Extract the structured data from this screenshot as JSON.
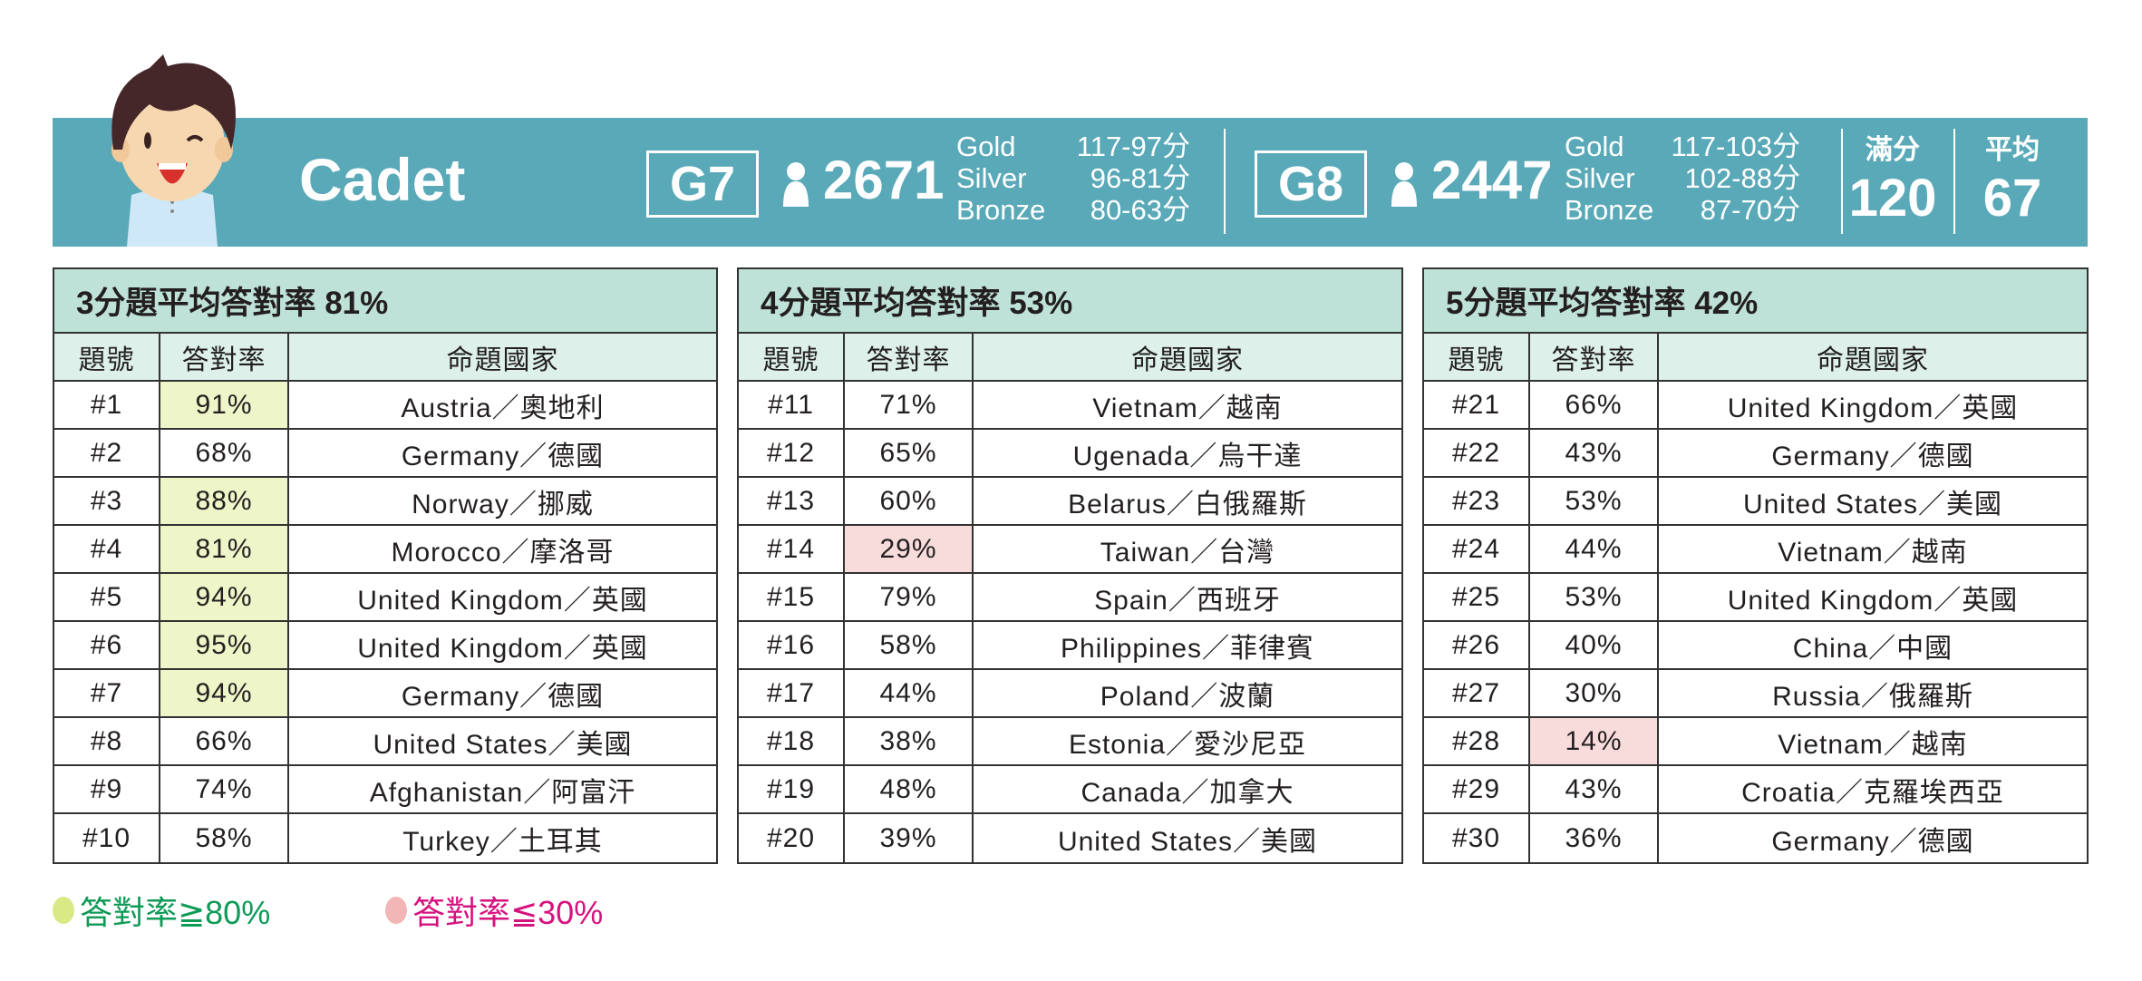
{
  "header": {
    "title": "Cadet",
    "g7": {
      "grade": "G7",
      "participants": "2671",
      "medals": [
        {
          "label": "Gold",
          "range": "117-97分"
        },
        {
          "label": "Silver",
          "range": "96-81分"
        },
        {
          "label": "Bronze",
          "range": "80-63分"
        }
      ]
    },
    "g8": {
      "grade": "G8",
      "participants": "2447",
      "medals": [
        {
          "label": "Gold",
          "range": "117-103分"
        },
        {
          "label": "Silver",
          "range": "102-88分"
        },
        {
          "label": "Bronze",
          "range": "87-70分"
        }
      ]
    },
    "full_score_label": "滿分",
    "full_score": "120",
    "average_label": "平均",
    "average": "67"
  },
  "colors": {
    "banner": "#5aa9b8",
    "high": "#eef5c9",
    "low": "#f8dcdc",
    "legend_high": "#0e9a57",
    "legend_low": "#d6127f"
  },
  "tables": [
    {
      "title": "3分題平均答對率 81%",
      "headers": [
        "題號",
        "答對率",
        "命題國家"
      ],
      "rows": [
        [
          "#1",
          "91%",
          "Austria／奧地利",
          "high"
        ],
        [
          "#2",
          "68%",
          "Germany／德國",
          ""
        ],
        [
          "#3",
          "88%",
          "Norway／挪威",
          "high"
        ],
        [
          "#4",
          "81%",
          "Morocco／摩洛哥",
          "high"
        ],
        [
          "#5",
          "94%",
          "United Kingdom／英國",
          "high"
        ],
        [
          "#6",
          "95%",
          "United Kingdom／英國",
          "high"
        ],
        [
          "#7",
          "94%",
          "Germany／德國",
          "high"
        ],
        [
          "#8",
          "66%",
          "United States／美國",
          ""
        ],
        [
          "#9",
          "74%",
          "Afghanistan／阿富汗",
          ""
        ],
        [
          "#10",
          "58%",
          "Turkey／土耳其",
          ""
        ]
      ]
    },
    {
      "title": "4分題平均答對率 53%",
      "headers": [
        "題號",
        "答對率",
        "命題國家"
      ],
      "rows": [
        [
          "#11",
          "71%",
          "Vietnam／越南",
          ""
        ],
        [
          "#12",
          "65%",
          "Ugenada／烏干達",
          ""
        ],
        [
          "#13",
          "60%",
          "Belarus／白俄羅斯",
          ""
        ],
        [
          "#14",
          "29%",
          "Taiwan／台灣",
          "low"
        ],
        [
          "#15",
          "79%",
          "Spain／西班牙",
          ""
        ],
        [
          "#16",
          "58%",
          "Philippines／菲律賓",
          ""
        ],
        [
          "#17",
          "44%",
          "Poland／波蘭",
          ""
        ],
        [
          "#18",
          "38%",
          "Estonia／愛沙尼亞",
          ""
        ],
        [
          "#19",
          "48%",
          "Canada／加拿大",
          ""
        ],
        [
          "#20",
          "39%",
          "United States／美國",
          ""
        ]
      ]
    },
    {
      "title": "5分題平均答對率 42%",
      "headers": [
        "題號",
        "答對率",
        "命題國家"
      ],
      "rows": [
        [
          "#21",
          "66%",
          "United Kingdom／英國",
          ""
        ],
        [
          "#22",
          "43%",
          "Germany／德國",
          ""
        ],
        [
          "#23",
          "53%",
          "United States／美國",
          ""
        ],
        [
          "#24",
          "44%",
          "Vietnam／越南",
          ""
        ],
        [
          "#25",
          "53%",
          "United Kingdom／英國",
          ""
        ],
        [
          "#26",
          "40%",
          "China／中國",
          ""
        ],
        [
          "#27",
          "30%",
          "Russia／俄羅斯",
          ""
        ],
        [
          "#28",
          "14%",
          "Vietnam／越南",
          "low"
        ],
        [
          "#29",
          "43%",
          "Croatia／克羅埃西亞",
          ""
        ],
        [
          "#30",
          "36%",
          "Germany／德國",
          ""
        ]
      ]
    }
  ],
  "legend": {
    "high": "答對率≧80%",
    "low": "答對率≦30%"
  }
}
